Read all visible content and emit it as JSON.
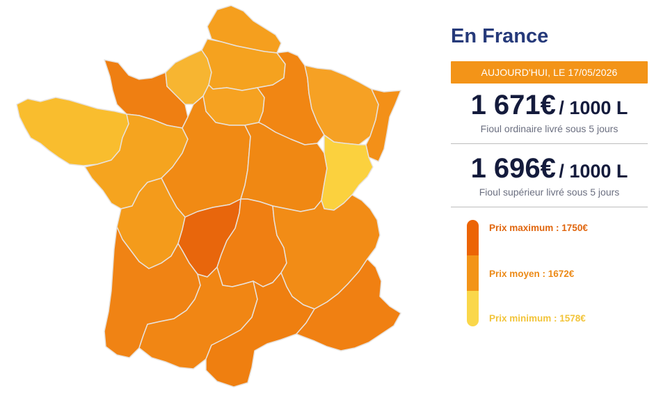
{
  "panel": {
    "title": "En France",
    "date_banner": "AUJOURD'HUI, LE 17/05/2026",
    "ordinary": {
      "price": "1 671€",
      "unit": "/ 1000 L",
      "description": "Fioul ordinaire livré sous 5 jours"
    },
    "superior": {
      "price": "1 696€",
      "unit": "/ 1000 L",
      "description": "Fioul supérieur livré sous 5 jours"
    }
  },
  "legend": {
    "max_label": "Prix maximum : 1750€",
    "avg_label": "Prix moyen : 1672€",
    "min_label": "Prix minimum : 1578€",
    "max_color": "#ec6405",
    "avg_color": "#f39418",
    "min_color": "#fad74a",
    "max_text_color": "#e0660e",
    "avg_text_color": "#ec8a17",
    "min_text_color": "#f2c43a"
  },
  "map": {
    "colors": {
      "nord": "#f59f1e",
      "picardie": "#f5a21f",
      "haute_normandie": "#f7b531",
      "basse_normandie": "#ef7f12",
      "bretagne": "#f9bd2e",
      "idf": "#f6a221",
      "champagne": "#f18613",
      "lorraine": "#f6a124",
      "alsace": "#f39018",
      "pays_de_la_loire": "#f5a41f",
      "centre": "#f18a14",
      "bourgogne": "#f08813",
      "franche_comte": "#fbd13e",
      "poitou": "#f49b1b",
      "limousin": "#e8660c",
      "auvergne": "#f07f12",
      "rhone_alpes": "#f28c16",
      "aquitaine": "#f08314",
      "midi_pyrenees": "#f18614",
      "languedoc": "#ef7f10",
      "paca": "#f08012"
    }
  }
}
